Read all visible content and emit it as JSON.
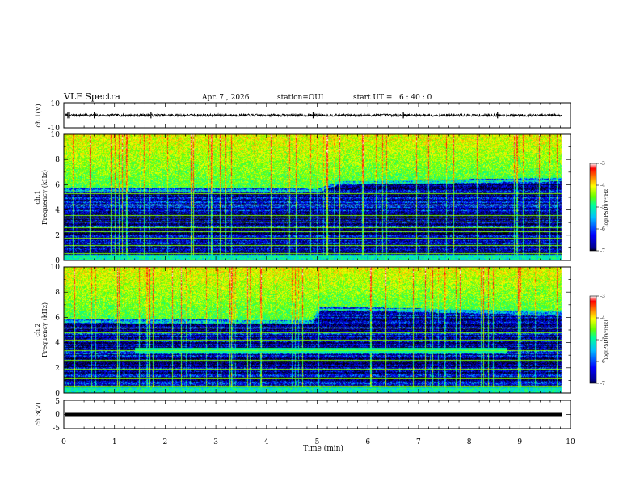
{
  "header": {
    "title": "VLF Spectra",
    "date": "Apr. 7 , 2026",
    "station": "station=OUI",
    "start": "start UT =   6 : 40 : 0"
  },
  "chart_data": [
    {
      "id": "ch1-waveform",
      "type": "line",
      "ylabel": "ch.1(V)",
      "ylim": [
        -10,
        10
      ],
      "yticks": [
        "10",
        "-10"
      ],
      "xlim": [
        0,
        10
      ],
      "baseline": 0,
      "noise_amplitude": 1,
      "spikes": [
        0.08,
        0.11,
        0.6,
        1.72,
        4.92,
        6.7,
        8.56
      ],
      "color": "#000000"
    },
    {
      "id": "ch1-spectrogram",
      "type": "heatmap",
      "ylabel_line1": "ch.1",
      "ylabel_line2": "Frequency (kHz)",
      "ylim": [
        0,
        10
      ],
      "yticks": [
        "0",
        "2",
        "4",
        "6",
        "8",
        "10"
      ],
      "xlim": [
        0,
        10
      ],
      "data_end_min": 9.83,
      "band_top_khz": [
        [
          0,
          5.8
        ],
        [
          1.2,
          5.8
        ],
        [
          5.0,
          5.7
        ],
        [
          5.4,
          6.3
        ],
        [
          9.83,
          6.6
        ]
      ],
      "band_floor_khz": 0.5,
      "extra_band": null,
      "bright_lines_khz": [
        0.6,
        1.2,
        1.8,
        2.3,
        2.6,
        3.1,
        3.4,
        3.6,
        4.4,
        5.3
      ],
      "colorbar": {
        "label": "log(PSD)(V²/Hz)",
        "min": -7,
        "max": -3,
        "ticks": [
          "-3",
          "-4",
          "-5",
          "-6",
          "-7"
        ]
      }
    },
    {
      "id": "ch2-spectrogram",
      "type": "heatmap",
      "ylabel_line1": "ch.2",
      "ylabel_line2": "Frequency (kHz)",
      "ylim": [
        0,
        10
      ],
      "yticks": [
        "0",
        "2",
        "4",
        "6",
        "8",
        "10"
      ],
      "xlim": [
        0,
        10
      ],
      "data_end_min": 9.83,
      "band_top_khz": [
        [
          0,
          5.9
        ],
        [
          4.9,
          5.8
        ],
        [
          5.05,
          6.9
        ],
        [
          9.83,
          6.5
        ]
      ],
      "band_floor_khz": 0.5,
      "extra_band": {
        "from_min": 1.4,
        "to_min": 8.75,
        "low_khz": 3.2,
        "high_khz": 3.6
      },
      "bright_lines_khz": [
        0.6,
        1.2,
        1.9,
        2.6,
        3.4,
        4.2,
        4.8,
        5.2
      ],
      "colorbar": {
        "label": "log(PSD)(V²/Hz)",
        "min": -7,
        "max": -3,
        "ticks": [
          "-3",
          "-4",
          "-5",
          "-6",
          "-7"
        ]
      }
    },
    {
      "id": "ch3-waveform",
      "type": "line",
      "ylabel": "ch.3(V)",
      "ylim": [
        -5,
        5
      ],
      "yticks": [
        "5",
        "0",
        "-5"
      ],
      "xlim": [
        0,
        10
      ],
      "baseline": 0,
      "noise_amplitude": 0,
      "spikes": [],
      "color": "#000000"
    }
  ],
  "xaxis": {
    "label": "Time (min)",
    "ticks": [
      "0",
      "1",
      "2",
      "3",
      "4",
      "5",
      "6",
      "7",
      "8",
      "9",
      "10"
    ]
  },
  "colors": {
    "background": "#000000",
    "colormap": [
      "#000000",
      "#00008b",
      "#0000ff",
      "#00bfff",
      "#00ff9a",
      "#66ff00",
      "#ffff00",
      "#ff8000",
      "#ff0000",
      "#ffffff"
    ]
  }
}
